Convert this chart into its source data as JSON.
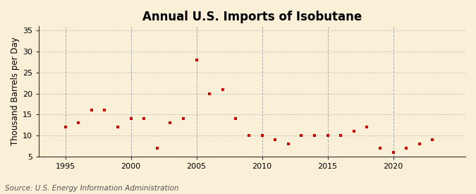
{
  "title": "Annual U.S. Imports of Isobutane",
  "ylabel": "Thousand Barrels per Day",
  "source": "Source: U.S. Energy Information Administration",
  "background_color": "#faf0d7",
  "plot_background_color": "#faf0d7",
  "marker_color": "#cc0000",
  "years": [
    1995,
    1996,
    1997,
    1998,
    1999,
    2000,
    2001,
    2002,
    2003,
    2004,
    2005,
    2006,
    2007,
    2008,
    2009,
    2010,
    2011,
    2012,
    2013,
    2014,
    2015,
    2016,
    2017,
    2018,
    2019,
    2020,
    2021,
    2022,
    2023,
    2024
  ],
  "values": [
    12,
    13,
    16,
    16,
    12,
    14,
    14,
    7,
    13,
    14,
    28,
    20,
    21,
    14,
    10,
    10,
    9,
    8,
    10,
    10,
    10,
    10,
    11,
    12,
    7,
    6,
    7,
    8,
    9,
    null
  ],
  "ylim": [
    5,
    36
  ],
  "yticks": [
    5,
    10,
    15,
    20,
    25,
    30,
    35
  ],
  "xlim": [
    1993.0,
    2025.5
  ],
  "xticks": [
    1995,
    2000,
    2005,
    2010,
    2015,
    2020
  ],
  "vgrid_years": [
    1995,
    2000,
    2005,
    2010,
    2015,
    2020
  ],
  "title_fontsize": 12,
  "label_fontsize": 8.5,
  "tick_fontsize": 8,
  "source_fontsize": 7.5
}
